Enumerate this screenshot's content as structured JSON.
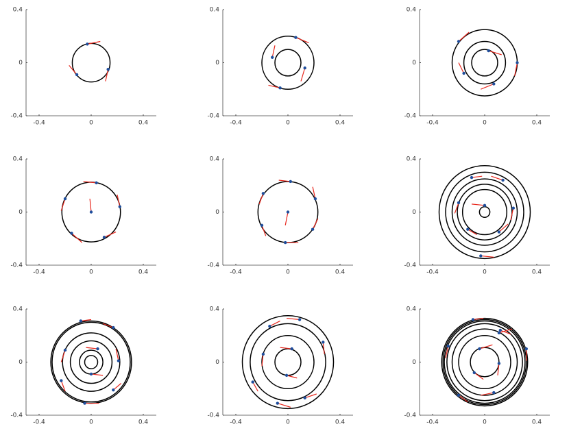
{
  "chart_data": [
    {
      "type": "scatter",
      "xlim": [
        -0.5,
        0.5
      ],
      "ylim": [
        -0.4,
        0.4
      ],
      "xticks": [
        -0.4,
        0,
        0.4
      ],
      "yticks": [
        -0.4,
        0,
        0.4
      ],
      "point_color": "#1f4e9c",
      "segment_color": "#e8261c",
      "circle_color": "#000000",
      "radii": [
        0.145
      ],
      "x": [
        -0.03,
        0.13,
        -0.11
      ],
      "y": [
        0.14,
        -0.05,
        -0.09
      ],
      "seg_x": [
        0.07,
        0.11,
        -0.17
      ],
      "seg_y": [
        0.16,
        -0.14,
        -0.02
      ]
    },
    {
      "type": "scatter",
      "xlim": [
        -0.5,
        0.5
      ],
      "ylim": [
        -0.4,
        0.4
      ],
      "xticks": [
        -0.4,
        0,
        0.4
      ],
      "yticks": [
        -0.4,
        0,
        0.4
      ],
      "point_color": "#1f4e9c",
      "segment_color": "#e8261c",
      "circle_color": "#000000",
      "radii": [
        0.1,
        0.2
      ],
      "x": [
        0.06,
        0.13,
        -0.06,
        -0.12
      ],
      "y": [
        0.19,
        -0.04,
        -0.19,
        0.04
      ],
      "seg_x": [
        0.16,
        0.1,
        -0.15,
        -0.1
      ],
      "seg_y": [
        0.15,
        -0.14,
        -0.17,
        0.13
      ]
    },
    {
      "type": "scatter",
      "xlim": [
        -0.5,
        0.5
      ],
      "ylim": [
        -0.4,
        0.4
      ],
      "xticks": [
        -0.4,
        0,
        0.4
      ],
      "yticks": [
        -0.4,
        0,
        0.4
      ],
      "point_color": "#1f4e9c",
      "segment_color": "#e8261c",
      "circle_color": "#000000",
      "radii": [
        0.1,
        0.16,
        0.25
      ],
      "x": [
        0.03,
        0.25,
        0.07,
        -0.16,
        -0.2
      ],
      "y": [
        0.09,
        0,
        -0.16,
        -0.08,
        0.16
      ],
      "seg_x": [
        0.13,
        0.23,
        -0.03,
        -0.2,
        -0.12
      ],
      "seg_y": [
        0.06,
        -0.1,
        -0.2,
        0,
        0.23
      ]
    },
    {
      "type": "scatter",
      "xlim": [
        -0.5,
        0.5
      ],
      "ylim": [
        -0.4,
        0.4
      ],
      "xticks": [
        -0.4,
        0,
        0.4
      ],
      "yticks": [
        -0.4,
        0,
        0.4
      ],
      "point_color": "#1f4e9c",
      "segment_color": "#e8261c",
      "circle_color": "#000000",
      "radii": [
        0.225
      ],
      "x": [
        0.04,
        0.22,
        0.1,
        -0.15,
        -0.2,
        0
      ],
      "y": [
        0.22,
        0.04,
        -0.19,
        -0.16,
        0.1,
        0
      ],
      "seg_x": [
        -0.06,
        0.2,
        0.19,
        -0.07,
        -0.23,
        -0.01
      ],
      "seg_y": [
        0.23,
        0.13,
        -0.15,
        -0.23,
        0.01,
        0.1
      ]
    },
    {
      "type": "scatter",
      "xlim": [
        -0.5,
        0.5
      ],
      "ylim": [
        -0.4,
        0.4
      ],
      "xticks": [
        -0.4,
        0,
        0.4
      ],
      "yticks": [
        -0.4,
        0,
        0.4
      ],
      "point_color": "#1f4e9c",
      "segment_color": "#e8261c",
      "circle_color": "#000000",
      "radii": [
        0.23
      ],
      "x": [
        0.02,
        0.21,
        0.19,
        -0.02,
        -0.2,
        -0.19,
        0
      ],
      "y": [
        0.23,
        0.1,
        -0.13,
        -0.23,
        -0.1,
        0.14,
        0
      ],
      "seg_x": [
        -0.07,
        0.19,
        0.23,
        0.08,
        -0.17,
        -0.22,
        -0.02
      ],
      "seg_y": [
        0.24,
        0.19,
        -0.05,
        -0.23,
        -0.18,
        0.06,
        -0.1
      ]
    },
    {
      "type": "scatter",
      "xlim": [
        -0.5,
        0.5
      ],
      "ylim": [
        -0.4,
        0.4
      ],
      "xticks": [
        -0.4,
        0,
        0.4
      ],
      "yticks": [
        -0.4,
        0,
        0.4
      ],
      "point_color": "#1f4e9c",
      "segment_color": "#e8261c",
      "circle_color": "#000000",
      "radii": [
        0.04,
        0.17,
        0.21,
        0.25,
        0.3,
        0.35
      ],
      "x": [
        0,
        0.22,
        0.11,
        -0.13,
        -0.2,
        -0.1,
        0.14,
        -0.03
      ],
      "y": [
        0.05,
        0.03,
        -0.15,
        -0.13,
        0.07,
        0.26,
        0.24,
        -0.33
      ],
      "seg_x": [
        -0.1,
        0.2,
        0.18,
        -0.06,
        -0.23,
        -0.02,
        0.05,
        0.07
      ],
      "seg_y": [
        0.06,
        -0.06,
        -0.09,
        -0.17,
        -0.01,
        0.27,
        0.27,
        -0.34
      ]
    },
    {
      "type": "scatter",
      "xlim": [
        -0.5,
        0.5
      ],
      "ylim": [
        -0.4,
        0.4
      ],
      "xticks": [
        -0.4,
        0,
        0.4
      ],
      "yticks": [
        -0.4,
        0,
        0.4
      ],
      "point_color": "#1f4e9c",
      "segment_color": "#e8261c",
      "circle_color": "#000000",
      "radii": [
        0.05,
        0.09,
        0.16,
        0.22,
        0.3,
        0.31
      ],
      "x": [
        0,
        0.05,
        0.21,
        0.17,
        -0.23,
        -0.2,
        -0.08,
        0.17,
        -0.05
      ],
      "y": [
        -0.09,
        0.1,
        0.01,
        -0.21,
        -0.14,
        0.09,
        0.31,
        0.26,
        -0.31
      ],
      "seg_x": [
        0.09,
        -0.04,
        0.19,
        0.23,
        -0.2,
        -0.23,
        0,
        0.09,
        0.06
      ],
      "seg_y": [
        -0.1,
        0.11,
        0.1,
        -0.16,
        -0.22,
        0,
        0.32,
        0.29,
        -0.31
      ]
    },
    {
      "type": "scatter",
      "xlim": [
        -0.5,
        0.5
      ],
      "ylim": [
        -0.4,
        0.4
      ],
      "xticks": [
        -0.4,
        0,
        0.4
      ],
      "yticks": [
        -0.4,
        0,
        0.4
      ],
      "point_color": "#1f4e9c",
      "segment_color": "#e8261c",
      "circle_color": "#000000",
      "radii": [
        0.1,
        0.2,
        0.29,
        0.35
      ],
      "x": [
        0.03,
        -0.01,
        0.09,
        0.27,
        0.13,
        -0.14,
        -0.19,
        -0.27,
        -0.08
      ],
      "y": [
        0.1,
        -0.1,
        0.32,
        0.15,
        -0.27,
        0.27,
        0.06,
        -0.15,
        -0.31
      ],
      "seg_x": [
        -0.06,
        0.07,
        -0.01,
        0.28,
        0.22,
        -0.06,
        -0.2,
        -0.23,
        0.02
      ],
      "seg_y": [
        0.11,
        -0.12,
        0.33,
        0.06,
        -0.24,
        0.31,
        -0.03,
        -0.22,
        -0.34
      ]
    },
    {
      "type": "scatter",
      "xlim": [
        -0.5,
        0.5
      ],
      "ylim": [
        -0.4,
        0.4
      ],
      "xticks": [
        -0.4,
        0,
        0.4
      ],
      "yticks": [
        -0.4,
        0,
        0.4
      ],
      "point_color": "#1f4e9c",
      "segment_color": "#e8261c",
      "circle_color": "#000000",
      "radii": [
        0.11,
        0.2,
        0.25,
        0.29,
        0.31,
        0.32,
        0.33
      ],
      "x": [
        -0.04,
        0.11,
        -0.08,
        0.11,
        0.12,
        -0.09,
        0.32,
        -0.28,
        -0.2,
        0.07
      ],
      "y": [
        0.1,
        -0.01,
        -0.08,
        0.22,
        0.24,
        0.32,
        0.1,
        0.12,
        -0.25,
        -0.23
      ],
      "seg_x": [
        0.06,
        0.1,
        -0.01,
        0.21,
        0.2,
        -0.01,
        0.32,
        -0.3,
        -0.13,
        -0.03
      ],
      "seg_y": [
        0.13,
        -0.1,
        -0.13,
        0.25,
        0.21,
        0.33,
        0.01,
        0.03,
        -0.3,
        -0.25
      ]
    }
  ]
}
